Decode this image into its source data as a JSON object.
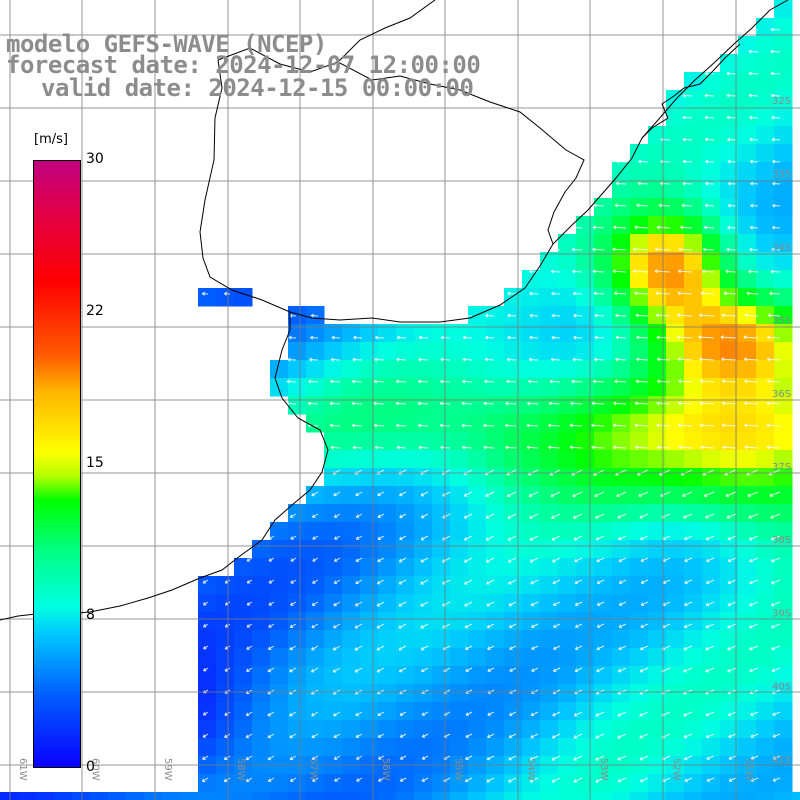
{
  "title": {
    "line1": "modelo GEFS-WAVE (NCEP)",
    "line2": "forecast date: 2024-12-07 12:00:00",
    "line3": "valid date: 2024-12-15 00:00:00"
  },
  "colorbar": {
    "unit": "[m/s]",
    "ticks": [
      "30",
      "22",
      "15",
      "8",
      "0"
    ],
    "colors": [
      "#0a00ff",
      "#0060ff",
      "#00c8ff",
      "#00ffe0",
      "#00ff00",
      "#ffff00",
      "#ff5a00",
      "#ff0000",
      "#c00080"
    ]
  },
  "lat_labels": [
    "32S",
    "33S",
    "34S",
    "35S",
    "36S",
    "37S",
    "38S",
    "39S",
    "40S",
    "41S"
  ],
  "lon_labels": [
    "61W",
    "60W",
    "59W",
    "58W",
    "57W",
    "56W",
    "55W",
    "54W",
    "53W",
    "52W",
    "51W"
  ]
}
